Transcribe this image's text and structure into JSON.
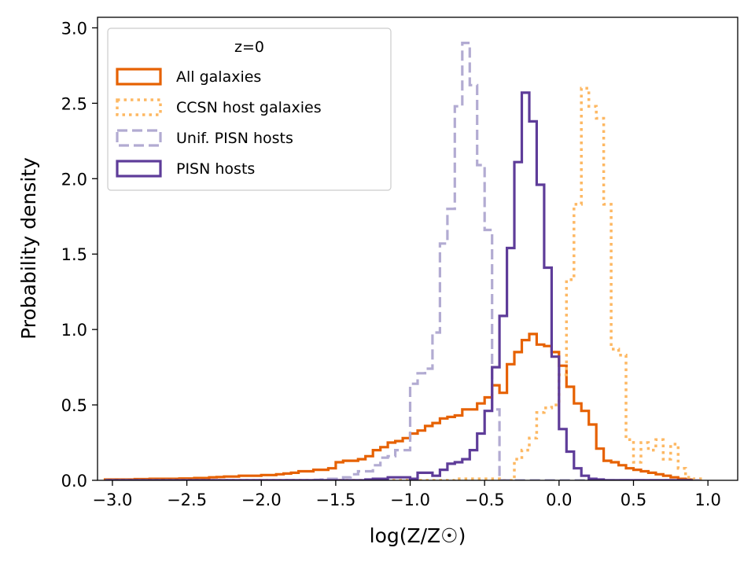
{
  "chart_data": {
    "type": "histogram-step",
    "xlabel": "log(Z/Z☉)",
    "ylabel": "Probability density",
    "xlim": [
      -3.1,
      1.2
    ],
    "ylim": [
      0,
      3.07
    ],
    "x_ticks": [
      -3.0,
      -2.5,
      -2.0,
      -1.5,
      -1.0,
      -0.5,
      0.0,
      0.5,
      1.0
    ],
    "x_tick_labels": [
      "−3.0",
      "−2.5",
      "−2.0",
      "−1.5",
      "−1.0",
      "−0.5",
      "0.0",
      "0.5",
      "1.0"
    ],
    "y_ticks": [
      0.0,
      0.5,
      1.0,
      1.5,
      2.0,
      2.5,
      3.0
    ],
    "y_tick_labels": [
      "0.0",
      "0.5",
      "1.0",
      "1.5",
      "2.0",
      "2.5",
      "3.0"
    ],
    "legend": {
      "title": "z=0",
      "placement": "upper left"
    },
    "bin_edges": [
      -3.05,
      -3.0,
      -2.95,
      -2.9,
      -2.85,
      -2.8,
      -2.75,
      -2.7,
      -2.65,
      -2.6,
      -2.55,
      -2.5,
      -2.45,
      -2.4,
      -2.35,
      -2.3,
      -2.25,
      -2.2,
      -2.15,
      -2.1,
      -2.05,
      -2.0,
      -1.95,
      -1.9,
      -1.85,
      -1.8,
      -1.75,
      -1.7,
      -1.65,
      -1.6,
      -1.55,
      -1.5,
      -1.45,
      -1.4,
      -1.35,
      -1.3,
      -1.25,
      -1.2,
      -1.15,
      -1.1,
      -1.05,
      -1.0,
      -0.95,
      -0.9,
      -0.85,
      -0.8,
      -0.75,
      -0.7,
      -0.65,
      -0.6,
      -0.55,
      -0.5,
      -0.45,
      -0.4,
      -0.35,
      -0.3,
      -0.25,
      -0.2,
      -0.15,
      -0.1,
      -0.05,
      0.0,
      0.05,
      0.1,
      0.15,
      0.2,
      0.25,
      0.3,
      0.35,
      0.4,
      0.45,
      0.5,
      0.55,
      0.6,
      0.65,
      0.7,
      0.75,
      0.8,
      0.85,
      0.9,
      0.95
    ],
    "series": [
      {
        "name": "All galaxies",
        "color": "#e66101",
        "style": "solid",
        "width": 3.2,
        "values": [
          0.005,
          0.005,
          0.005,
          0.005,
          0.008,
          0.008,
          0.01,
          0.01,
          0.01,
          0.01,
          0.012,
          0.012,
          0.015,
          0.015,
          0.02,
          0.022,
          0.025,
          0.025,
          0.03,
          0.03,
          0.03,
          0.035,
          0.035,
          0.04,
          0.045,
          0.05,
          0.06,
          0.06,
          0.07,
          0.07,
          0.08,
          0.12,
          0.13,
          0.13,
          0.14,
          0.16,
          0.2,
          0.22,
          0.25,
          0.26,
          0.28,
          0.31,
          0.33,
          0.36,
          0.38,
          0.41,
          0.42,
          0.43,
          0.47,
          0.47,
          0.51,
          0.55,
          0.63,
          0.58,
          0.77,
          0.85,
          0.93,
          0.97,
          0.9,
          0.89,
          0.85,
          0.76,
          0.62,
          0.51,
          0.46,
          0.37,
          0.21,
          0.13,
          0.12,
          0.1,
          0.08,
          0.07,
          0.06,
          0.05,
          0.04,
          0.03,
          0.02,
          0.01,
          0.005,
          0.0
        ]
      },
      {
        "name": "CCSN host galaxies",
        "color": "#fdb863",
        "style": "dotted",
        "width": 3.5,
        "values": [
          0,
          0,
          0,
          0,
          0,
          0,
          0,
          0,
          0,
          0,
          0,
          0,
          0,
          0,
          0,
          0,
          0,
          0,
          0,
          0,
          0,
          0,
          0,
          0,
          0,
          0,
          0,
          0,
          0,
          0,
          0,
          0,
          0,
          0,
          0,
          0,
          0,
          0,
          0,
          0,
          0,
          0,
          0,
          0,
          0,
          0,
          0,
          0.01,
          0.01,
          0.01,
          0.01,
          0.01,
          0.01,
          0.0,
          0.0,
          0.14,
          0.2,
          0.28,
          0.45,
          0.48,
          0.5,
          0.7,
          1.33,
          1.83,
          2.6,
          2.48,
          2.4,
          1.83,
          0.87,
          0.83,
          0.27,
          0.12,
          0.25,
          0.2,
          0.27,
          0.14,
          0.24,
          0.08,
          0.02,
          0.01,
          0.0
        ]
      },
      {
        "name": "Unif. PISN hosts",
        "color": "#b2abd2",
        "style": "dashed",
        "width": 3.2,
        "values": [
          0,
          0,
          0,
          0,
          0,
          0,
          0,
          0,
          0,
          0,
          0,
          0,
          0,
          0,
          0,
          0,
          0,
          0,
          0,
          0,
          0,
          0,
          0,
          0,
          0,
          0,
          0,
          0,
          0.003,
          0.005,
          0.01,
          0.01,
          0.02,
          0.04,
          0.06,
          0.06,
          0.1,
          0.15,
          0.16,
          0.2,
          0.2,
          0.64,
          0.71,
          0.74,
          0.98,
          1.57,
          1.8,
          2.48,
          2.9,
          2.62,
          2.09,
          1.66,
          0.47,
          0.0,
          0.0,
          0,
          0,
          0,
          0,
          0,
          0,
          0,
          0,
          0,
          0,
          0,
          0,
          0,
          0,
          0,
          0,
          0,
          0,
          0,
          0,
          0,
          0,
          0,
          0,
          0
        ]
      },
      {
        "name": "PISN hosts",
        "color": "#5e3c99",
        "style": "solid",
        "width": 3.2,
        "values": [
          0,
          0,
          0,
          0,
          0,
          0,
          0,
          0,
          0,
          0,
          0,
          0,
          0,
          0,
          0,
          0,
          0,
          0,
          0,
          0,
          0,
          0,
          0,
          0,
          0,
          0,
          0,
          0,
          0,
          0,
          0,
          0,
          0,
          0,
          0,
          0.005,
          0.01,
          0.01,
          0.02,
          0.02,
          0.02,
          0.01,
          0.05,
          0.05,
          0.03,
          0.07,
          0.11,
          0.12,
          0.14,
          0.2,
          0.31,
          0.46,
          0.75,
          1.09,
          1.54,
          2.11,
          2.57,
          2.38,
          1.96,
          1.41,
          0.82,
          0.34,
          0.19,
          0.08,
          0.03,
          0.01,
          0.005,
          0,
          0,
          0,
          0,
          0,
          0,
          0,
          0,
          0,
          0,
          0,
          0
        ]
      }
    ]
  }
}
